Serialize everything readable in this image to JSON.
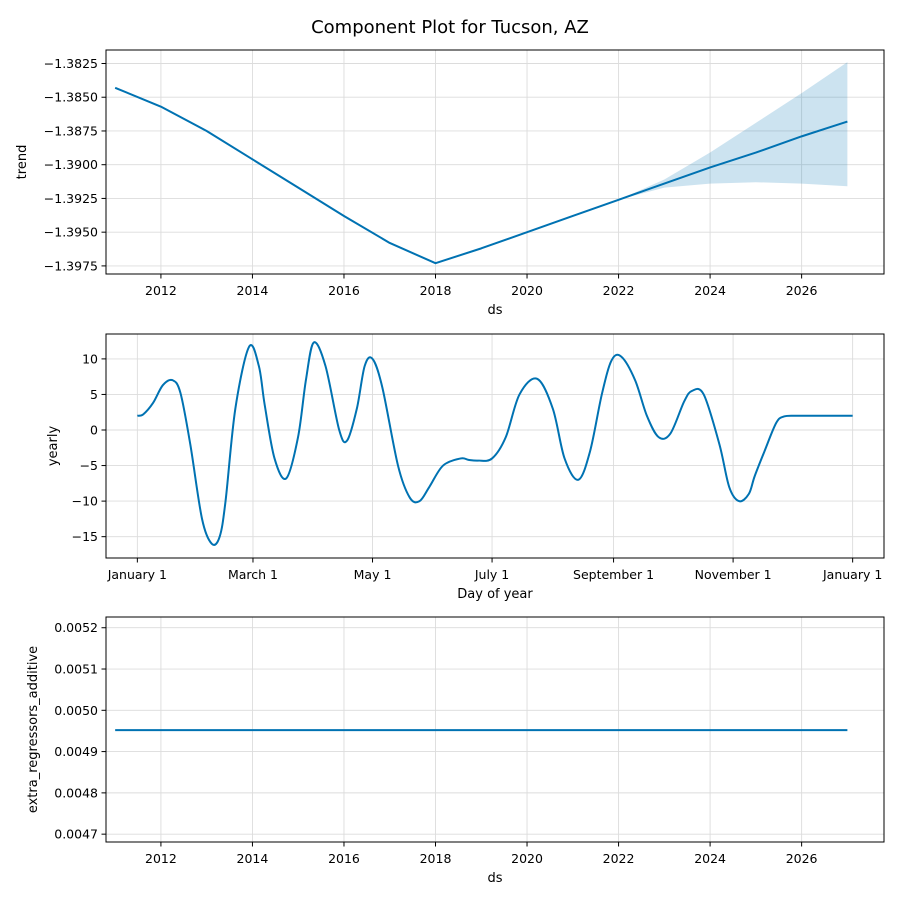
{
  "figure": {
    "title": "Component Plot for Tucson, AZ",
    "line_color": "#0072b2",
    "band_color": "#0072b2",
    "band_opacity": 0.2
  },
  "chart_data": [
    {
      "type": "line",
      "ylabel": "trend",
      "xlabel": "ds",
      "x_ticks": [
        "2012",
        "2014",
        "2016",
        "2018",
        "2020",
        "2022",
        "2024",
        "2026"
      ],
      "xlim": [
        2010.8,
        2027.8
      ],
      "y_ticks": [
        "−1.3825",
        "−1.3850",
        "−1.3875",
        "−1.3900",
        "−1.3925",
        "−1.3950",
        "−1.3975"
      ],
      "ylim": [
        -1.3981,
        -1.3815
      ],
      "grid": true,
      "series": [
        {
          "x": [
            2011,
            2012,
            2013,
            2014,
            2015,
            2016,
            2017,
            2018,
            2019,
            2020,
            2021,
            2022,
            2023,
            2024,
            2025,
            2026,
            2027
          ],
          "values": [
            -1.3843,
            -1.3857,
            -1.3875,
            -1.3896,
            -1.3917,
            -1.3938,
            -1.3958,
            -1.3973,
            -1.3962,
            -1.395,
            -1.3938,
            -1.3926,
            -1.3914,
            -1.3902,
            -1.3891,
            -1.3879,
            -1.3868
          ]
        }
      ],
      "uncertainty": {
        "x": [
          2022,
          2023,
          2024,
          2025,
          2026,
          2027
        ],
        "upper": [
          -1.3926,
          -1.3911,
          -1.3891,
          -1.3869,
          -1.3847,
          -1.3824
        ],
        "lower": [
          -1.3926,
          -1.3917,
          -1.3914,
          -1.3913,
          -1.3914,
          -1.3916
        ]
      }
    },
    {
      "type": "line",
      "ylabel": "yearly",
      "xlabel": "Day of year",
      "x_ticks": [
        "January 1",
        "March 1",
        "May 1",
        "July 1",
        "September 1",
        "November 1",
        "January 1"
      ],
      "x_tick_days": [
        0,
        59,
        120,
        181,
        243,
        304,
        365
      ],
      "xlim": [
        -16,
        381
      ],
      "y_ticks": [
        "10",
        "5",
        "0",
        "−5",
        "−10",
        "−15"
      ],
      "y_tick_values": [
        10,
        5,
        0,
        -5,
        -10,
        -15
      ],
      "ylim": [
        -18,
        13.5
      ],
      "grid": true,
      "series": [
        {
          "x": [
            0,
            3,
            8,
            13,
            18,
            22,
            27,
            33,
            38,
            42,
            45,
            50,
            57,
            62,
            65,
            70,
            76,
            82,
            86,
            90,
            96,
            103,
            107,
            112,
            116,
            120,
            125,
            133,
            139,
            144,
            149,
            156,
            165,
            169,
            174,
            181,
            188,
            195,
            204,
            212,
            218,
            225,
            231,
            237,
            242,
            247,
            254,
            260,
            266,
            272,
            279,
            283,
            289,
            297,
            302,
            307,
            312,
            315,
            320,
            326,
            330,
            336,
            340,
            345,
            350,
            356,
            360,
            365
          ],
          "values": [
            2.0,
            2.2,
            3.8,
            6.3,
            7.0,
            5.2,
            -2.0,
            -12.5,
            -16.0,
            -15.0,
            -10.0,
            3.0,
            11.7,
            9.0,
            3.5,
            -4.0,
            -6.8,
            -1.0,
            7.0,
            12.3,
            9.0,
            0.0,
            -1.5,
            3.0,
            9.0,
            10.0,
            6.0,
            -5.0,
            -9.5,
            -10.0,
            -8.0,
            -5.0,
            -4.0,
            -4.2,
            -4.3,
            -4.0,
            -1.0,
            5.0,
            7.2,
            3.0,
            -4.0,
            -7.0,
            -3.0,
            5.0,
            9.8,
            10.3,
            7.0,
            2.0,
            -1.0,
            -0.5,
            4.0,
            5.5,
            5.0,
            -2.0,
            -8.0,
            -10.0,
            -9.0,
            -6.5,
            -3.0,
            1.0,
            1.9,
            2.0,
            2.0,
            2.0,
            2.0,
            2.0,
            2.0,
            2.0
          ]
        }
      ]
    },
    {
      "type": "line",
      "ylabel": "extra_regressors_additive",
      "xlabel": "ds",
      "x_ticks": [
        "2012",
        "2014",
        "2016",
        "2018",
        "2020",
        "2022",
        "2024",
        "2026"
      ],
      "xlim": [
        2010.8,
        2027.8
      ],
      "y_ticks": [
        "0.0052",
        "0.0051",
        "0.0050",
        "0.0049",
        "0.0048",
        "0.0047"
      ],
      "ylim": [
        0.004681,
        0.005226
      ],
      "grid": true,
      "series": [
        {
          "x": [
            2011,
            2027
          ],
          "values": [
            0.004952,
            0.004952
          ]
        }
      ]
    }
  ]
}
